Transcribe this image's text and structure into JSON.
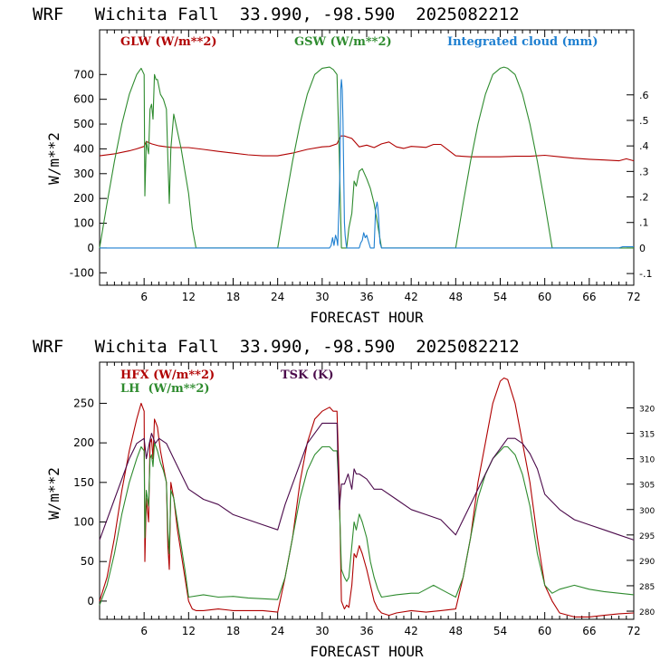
{
  "chart_data": [
    {
      "type": "line",
      "title": "WRF   Wichita Fall  33.990, -98.590  2025082212",
      "xlabel": "FORECAST HOUR",
      "ylabel": "W/m**2",
      "xlim": [
        0,
        72
      ],
      "ylim": [
        -150,
        880
      ],
      "y2lim": [
        -0.1457,
        0.8546
      ],
      "xticks": [
        6,
        12,
        18,
        24,
        30,
        36,
        42,
        48,
        54,
        60,
        66,
        72
      ],
      "yticks": [
        -100,
        0,
        100,
        200,
        300,
        400,
        500,
        600,
        700
      ],
      "y2ticks": [
        -0.1,
        0,
        0.1,
        0.2,
        0.3,
        0.4,
        0.5,
        0.6
      ],
      "y2ticklabels": [
        "-.1",
        "0",
        ".1",
        ".2",
        ".3",
        ".4",
        ".5",
        ".6"
      ],
      "grid": false,
      "legend": "top",
      "series": [
        {
          "name": "GLW (W/m**2)",
          "color": "#b00000",
          "axis": "left",
          "x": [
            0,
            2,
            4,
            5,
            6,
            6.3,
            7,
            8,
            9,
            10,
            12,
            14,
            16,
            18,
            20,
            22,
            24,
            26,
            28,
            30,
            31,
            32,
            32.5,
            33,
            34,
            35,
            36,
            37,
            38,
            39,
            40,
            41,
            42,
            43,
            44,
            45,
            46,
            47,
            48,
            50,
            52,
            54,
            56,
            58,
            60,
            62,
            64,
            66,
            68,
            70,
            71,
            72
          ],
          "y": [
            372,
            380,
            392,
            400,
            410,
            430,
            420,
            412,
            408,
            405,
            405,
            398,
            390,
            383,
            376,
            372,
            372,
            383,
            398,
            408,
            410,
            420,
            452,
            452,
            442,
            408,
            415,
            405,
            420,
            428,
            408,
            402,
            410,
            408,
            406,
            418,
            418,
            395,
            372,
            368,
            368,
            368,
            370,
            370,
            374,
            368,
            362,
            358,
            355,
            352,
            360,
            352
          ]
        },
        {
          "name": "GSW (W/m**2)",
          "color": "#2e8b2e",
          "axis": "left",
          "x": [
            0,
            1,
            2,
            3,
            4,
            5,
            5.6,
            6,
            6.1,
            6.3,
            6.6,
            6.8,
            7.0,
            7.2,
            7.4,
            7.6,
            7.8,
            8.2,
            8.6,
            9.0,
            9.2,
            9.4,
            9.6,
            10,
            11,
            12,
            12.5,
            13,
            24,
            25,
            26,
            27,
            28,
            29,
            30,
            31,
            31.5,
            32,
            32.3,
            32.6,
            33,
            33.3,
            33.6,
            34,
            34.3,
            34.6,
            35,
            35.4,
            36,
            36.5,
            37,
            37.5,
            38,
            48,
            49,
            50,
            51,
            52,
            53,
            54,
            54.5,
            55,
            56,
            57,
            58,
            59,
            60,
            61,
            72
          ],
          "y": [
            0,
            180,
            350,
            500,
            620,
            700,
            725,
            700,
            210,
            430,
            380,
            560,
            580,
            520,
            700,
            680,
            680,
            620,
            600,
            560,
            360,
            180,
            400,
            540,
            400,
            220,
            80,
            0,
            0,
            180,
            350,
            500,
            620,
            700,
            725,
            730,
            720,
            700,
            380,
            0,
            0,
            0,
            80,
            140,
            270,
            250,
            310,
            320,
            280,
            240,
            180,
            90,
            0,
            0,
            180,
            350,
            500,
            620,
            700,
            725,
            730,
            725,
            700,
            620,
            500,
            350,
            180,
            0,
            0
          ]
        },
        {
          "name": "Integrated cloud (mm)",
          "color": "#1e7fd0",
          "axis": "right",
          "x": [
            0,
            31,
            31.2,
            31.4,
            31.6,
            31.8,
            32,
            32.1,
            32.3,
            32.4,
            32.5,
            32.6,
            32.7,
            32.8,
            32.9,
            33,
            33.1,
            33.2,
            33.3,
            33.5,
            35,
            35.2,
            35.4,
            35.6,
            35.8,
            36,
            36.2,
            36.5,
            37,
            37.2,
            37.4,
            37.5,
            37.6,
            37.8,
            38,
            70,
            70.5,
            72
          ],
          "y": [
            0,
            0,
            0.01,
            0.04,
            0.01,
            0.05,
            0.03,
            0.01,
            0.2,
            0.3,
            0.62,
            0.66,
            0.62,
            0.5,
            0.3,
            0.1,
            0.05,
            0.02,
            0,
            0,
            0,
            0.02,
            0.03,
            0.06,
            0.04,
            0.05,
            0.03,
            0,
            0,
            0.15,
            0.18,
            0.16,
            0.12,
            0.02,
            0,
            0,
            0.005,
            0.005
          ]
        }
      ]
    },
    {
      "type": "line",
      "title": "WRF   Wichita Fall  33.990, -98.590  2025082212",
      "xlabel": "FORECAST HOUR",
      "ylabel": "W/m**2",
      "xlim": [
        0,
        72
      ],
      "ylim": [
        -23,
        302
      ],
      "y2lim": [
        278.4,
        329.0
      ],
      "xticks": [
        6,
        12,
        18,
        24,
        30,
        36,
        42,
        48,
        54,
        60,
        66,
        72
      ],
      "yticks": [
        0,
        50,
        100,
        150,
        200,
        250
      ],
      "y2ticks": [
        280,
        285,
        290,
        295,
        300,
        305,
        310,
        315,
        320
      ],
      "y2ticklabels": [
        "280",
        "285",
        "290",
        "295",
        "300",
        "305",
        "310",
        "315",
        "320"
      ],
      "grid": false,
      "legend": "top-left",
      "series": [
        {
          "name": "HFX (W/m**2)",
          "color": "#b00000",
          "axis": "left",
          "x": [
            0,
            1,
            2,
            3,
            4,
            5,
            5.6,
            6,
            6.1,
            6.3,
            6.6,
            6.8,
            7.0,
            7.2,
            7.4,
            7.6,
            7.8,
            8.2,
            8.6,
            9.0,
            9.2,
            9.4,
            9.6,
            10,
            10.5,
            11,
            11.5,
            12,
            12.5,
            13,
            14,
            16,
            18,
            20,
            22,
            24,
            25,
            26,
            27,
            28,
            29,
            30,
            31,
            31.5,
            32,
            32.3,
            32.6,
            33,
            33.3,
            33.6,
            34,
            34.3,
            34.6,
            35,
            35.4,
            36,
            36.5,
            37,
            37.5,
            38,
            39,
            40,
            42,
            44,
            46,
            48,
            49,
            50,
            51,
            52,
            53,
            54,
            54.5,
            55,
            56,
            57,
            58,
            59,
            60,
            61,
            62,
            64,
            66,
            68,
            70,
            72
          ],
          "y": [
            0,
            30,
            80,
            140,
            190,
            230,
            250,
            240,
            50,
            130,
            100,
            200,
            205,
            180,
            230,
            225,
            220,
            190,
            170,
            150,
            70,
            40,
            150,
            130,
            90,
            60,
            30,
            0,
            -10,
            -12,
            -12,
            -10,
            -12,
            -12,
            -12,
            -14,
            30,
            80,
            150,
            200,
            230,
            240,
            245,
            240,
            240,
            150,
            0,
            -10,
            -5,
            -8,
            20,
            60,
            55,
            70,
            60,
            40,
            20,
            0,
            -10,
            -15,
            -18,
            -15,
            -12,
            -14,
            -12,
            -10,
            30,
            80,
            150,
            200,
            250,
            278,
            282,
            280,
            250,
            200,
            150,
            80,
            20,
            0,
            -15,
            -20,
            -20,
            -18,
            -16,
            -15
          ]
        },
        {
          "name": "LH  (W/m**2)",
          "color": "#2e8b2e",
          "axis": "left",
          "x": [
            0,
            1,
            2,
            3,
            4,
            5,
            5.6,
            6,
            6.1,
            6.3,
            6.6,
            6.8,
            7.0,
            7.2,
            7.4,
            7.6,
            7.8,
            8.2,
            8.6,
            9.0,
            9.2,
            9.4,
            9.6,
            10,
            10.5,
            11,
            11.5,
            12,
            14,
            16,
            18,
            20,
            22,
            24,
            25,
            26,
            27,
            28,
            29,
            30,
            31,
            31.5,
            32,
            32.3,
            32.6,
            33,
            33.3,
            33.6,
            34,
            34.3,
            34.6,
            35,
            35.4,
            36,
            36.5,
            37,
            37.5,
            38,
            40,
            42,
            43,
            44,
            45,
            46,
            47,
            48,
            49,
            50,
            51,
            52,
            53,
            54,
            54.5,
            55,
            56,
            57,
            58,
            59,
            60,
            61,
            62,
            64,
            66,
            68,
            70,
            72
          ],
          "y": [
            -5,
            20,
            60,
            110,
            150,
            180,
            195,
            190,
            80,
            140,
            120,
            180,
            185,
            170,
            200,
            195,
            190,
            175,
            165,
            150,
            90,
            60,
            140,
            130,
            100,
            70,
            40,
            5,
            8,
            5,
            6,
            4,
            3,
            2,
            30,
            80,
            130,
            165,
            185,
            195,
            195,
            190,
            190,
            130,
            40,
            30,
            25,
            30,
            70,
            100,
            90,
            110,
            100,
            80,
            50,
            30,
            15,
            5,
            8,
            10,
            10,
            15,
            20,
            15,
            10,
            5,
            30,
            80,
            130,
            160,
            180,
            190,
            195,
            195,
            185,
            160,
            120,
            60,
            20,
            10,
            15,
            20,
            15,
            12,
            10,
            8
          ]
        },
        {
          "name": "TSK (K)",
          "color": "#4b0a4b",
          "axis": "right",
          "x": [
            0,
            2,
            4,
            5,
            6,
            6.3,
            6.7,
            7,
            7.5,
            8,
            9,
            10,
            11,
            12,
            14,
            16,
            18,
            20,
            22,
            24,
            25,
            26,
            27,
            28,
            29,
            30,
            31,
            32,
            32.3,
            32.6,
            33,
            33.5,
            34,
            34.3,
            34.6,
            35,
            36,
            37,
            38,
            40,
            42,
            44,
            46,
            48,
            49,
            50,
            51,
            52,
            53,
            54,
            55,
            56,
            57,
            58,
            59,
            60,
            62,
            64,
            66,
            68,
            70,
            72
          ],
          "y": [
            294,
            302,
            310,
            313,
            314,
            310,
            313,
            315,
            313,
            314,
            313,
            310,
            307,
            304,
            302,
            301,
            299,
            298,
            297,
            296,
            301,
            305,
            309,
            313,
            315,
            317,
            317,
            317,
            300,
            305,
            305,
            307,
            304,
            308,
            307,
            307,
            306,
            304,
            304,
            302,
            300,
            299,
            298,
            295,
            298,
            301,
            304,
            307,
            310,
            312,
            314,
            314,
            313,
            311,
            308,
            303,
            300,
            298,
            297,
            296,
            295,
            294
          ]
        }
      ]
    }
  ]
}
